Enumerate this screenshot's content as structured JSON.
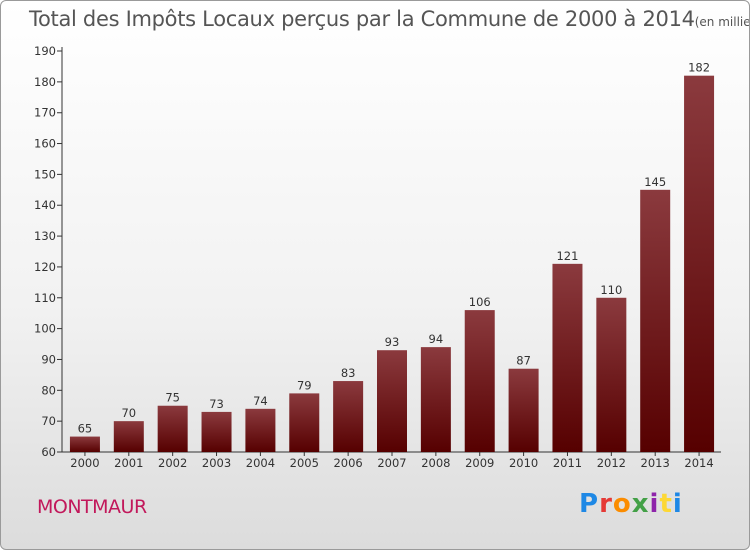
{
  "header": {
    "title": "Total des Impôts Locaux perçus par la Commune de 2000 à 2014",
    "unit": "(en milliers d'€)"
  },
  "footer": {
    "commune": "MONTMAUR",
    "logo": "Proxiti",
    "logo_colors": [
      "#1e88e5",
      "#e53935",
      "#fb8c00",
      "#43a047",
      "#8e24aa",
      "#fdd835",
      "#1e88e5"
    ]
  },
  "colors": {
    "bar_top": "#8b3a3e",
    "bar_bottom": "#560000",
    "commune": "#c2185b"
  },
  "chart_data": {
    "type": "bar",
    "title": "Total des Impôts Locaux perçus par la Commune de 2000 à 2014",
    "xlabel": "",
    "ylabel": "",
    "categories": [
      "2000",
      "2001",
      "2002",
      "2003",
      "2004",
      "2005",
      "2006",
      "2007",
      "2008",
      "2009",
      "2010",
      "2011",
      "2012",
      "2013",
      "2014"
    ],
    "values": [
      65,
      70,
      75,
      73,
      74,
      79,
      83,
      93,
      94,
      106,
      87,
      121,
      110,
      145,
      182
    ],
    "ylim": [
      60,
      190
    ],
    "yticks": [
      60,
      70,
      80,
      90,
      100,
      110,
      120,
      130,
      140,
      150,
      160,
      170,
      180,
      190
    ],
    "grid": false
  }
}
